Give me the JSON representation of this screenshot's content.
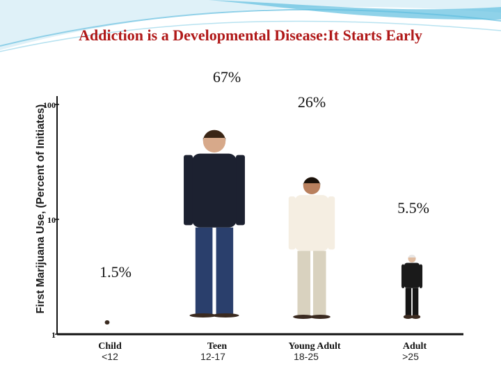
{
  "slide": {
    "title": "Addiction is a Developmental Disease:It Starts Early"
  },
  "chart_data": {
    "type": "bar",
    "ylabel": "First Marijuana Use, (Percent of Initiates)",
    "yscale": "log",
    "ylim": [
      1,
      100
    ],
    "yticks": [
      "1",
      "10",
      "100"
    ],
    "categories": [
      "Child",
      "Teen",
      "Young Adult",
      "Adult"
    ],
    "age_ranges": [
      "<12",
      "12-17",
      "18-25",
      ">25"
    ],
    "values": [
      1.5,
      67,
      26,
      5.5
    ],
    "value_labels": [
      "1.5%",
      "67%",
      "26%",
      "5.5%"
    ],
    "grid": false,
    "colors": {
      "title": "#b01818",
      "axis": "#111111"
    },
    "figures": [
      "child-figure",
      "teen-figure",
      "young-adult-figure",
      "adult-figure"
    ]
  }
}
